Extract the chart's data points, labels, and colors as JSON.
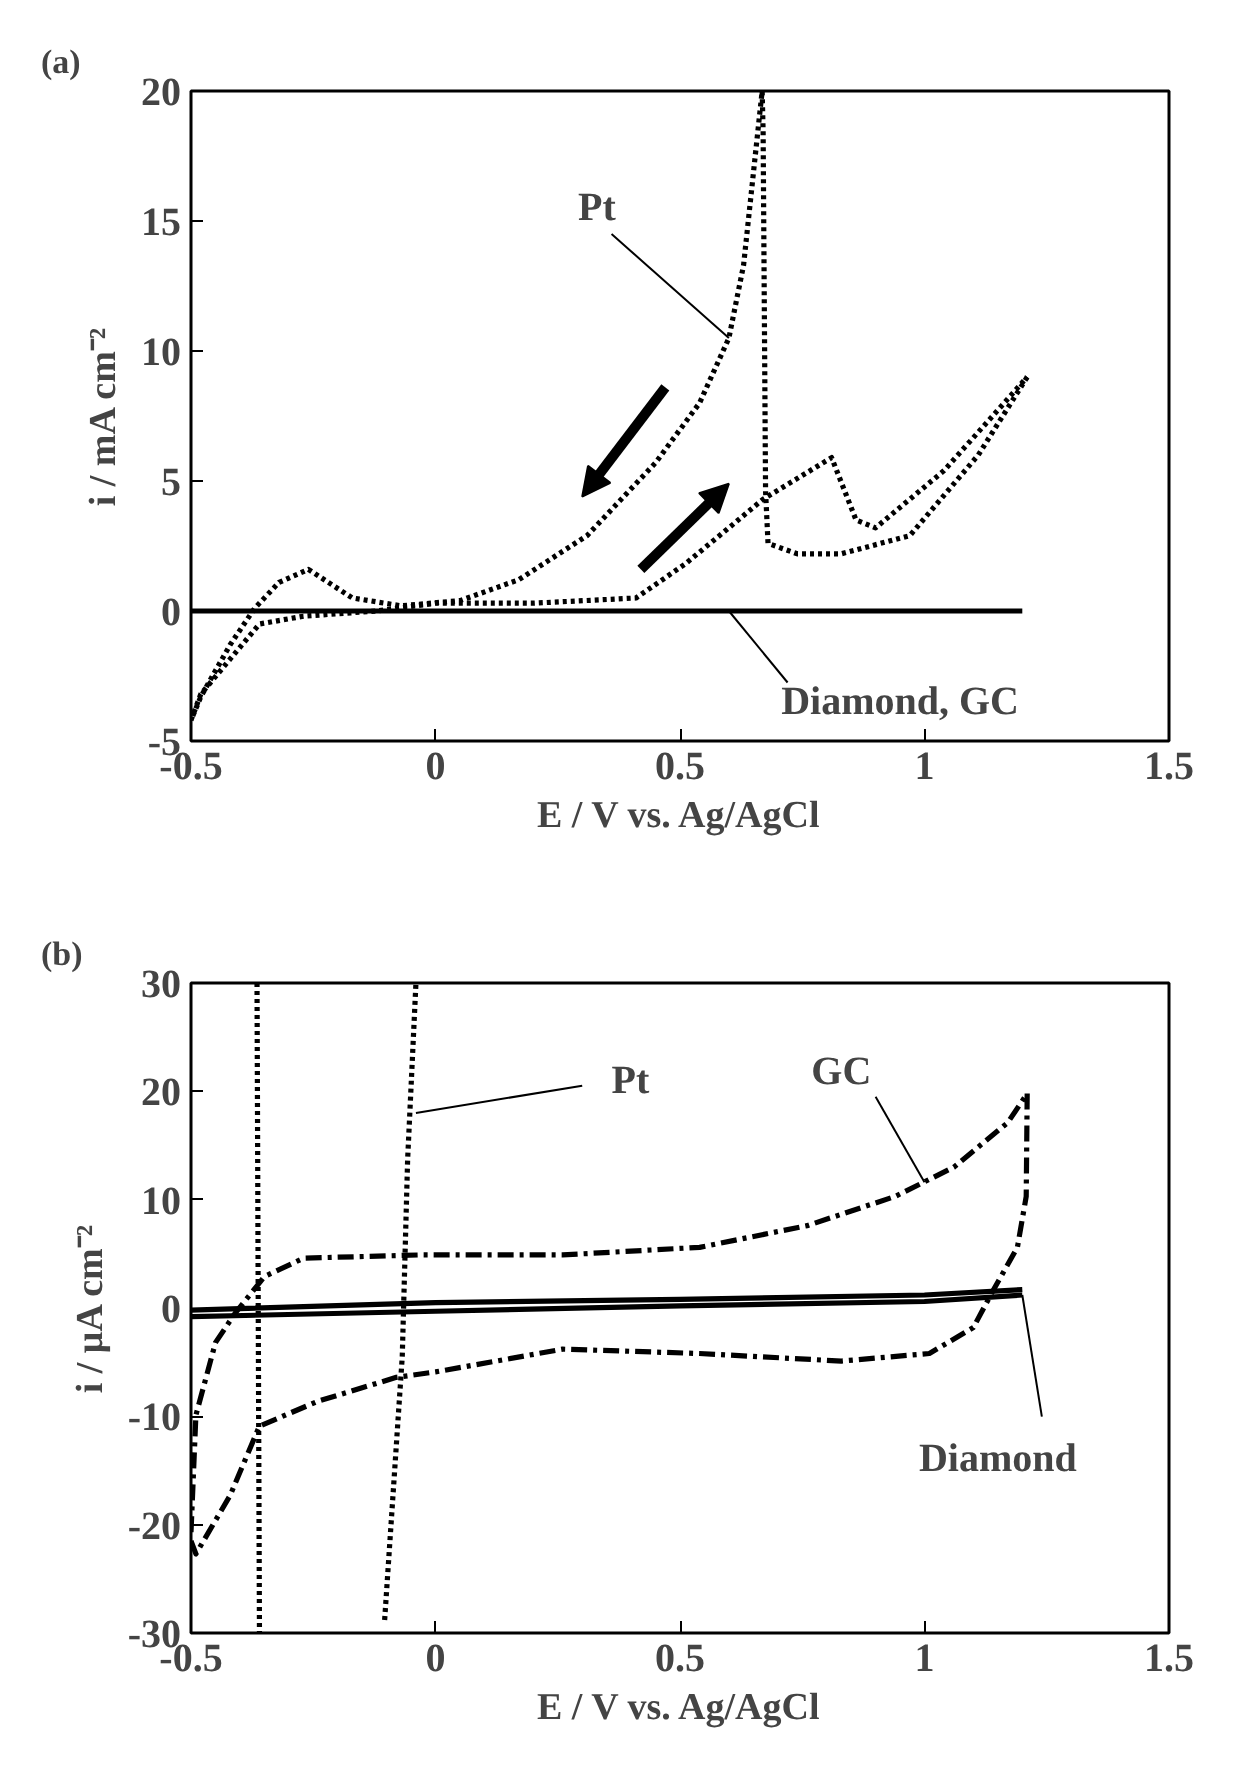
{
  "chart_data": [
    {
      "type": "line",
      "title": "(a)",
      "xlabel": "E / V vs. Ag/AgCl",
      "ylabel": "i / mA cm⁻²",
      "xlim": [
        -0.5,
        1.5
      ],
      "ylim": [
        -5,
        20
      ],
      "xticks": [
        -0.5,
        0,
        0.5,
        1,
        1.5
      ],
      "yticks": [
        -5,
        0,
        5,
        10,
        15,
        20
      ],
      "grid": false,
      "series": [
        {
          "color": "#000000",
          "line_style": "dotted",
          "x": [
            -0.5,
            -0.48,
            -0.36,
            -0.27,
            -0.12,
            0.0,
            0.2,
            0.41,
            0.51,
            0.6,
            0.67,
            0.81,
            0.86,
            0.9,
            1.04,
            1.21
          ],
          "values": [
            -4.2,
            -3.2,
            -0.5,
            -0.2,
            0.0,
            0.3,
            0.3,
            0.5,
            1.8,
            3.2,
            4.3,
            5.9,
            3.5,
            3.2,
            5.4,
            9.0
          ]
        },
        {
          "color": "#000000",
          "line_style": "dotted",
          "x": [
            1.21,
            1.11,
            0.97,
            0.83,
            0.74,
            0.68,
            0.675,
            0.67,
            0.668,
            0.63,
            0.6,
            0.54,
            0.45,
            0.31,
            0.17,
            0.05,
            -0.07,
            -0.17,
            -0.26,
            -0.32,
            -0.37,
            -0.42,
            -0.48,
            -0.5
          ],
          "values": [
            9.0,
            6.0,
            2.9,
            2.2,
            2.2,
            2.6,
            4.6,
            18.4,
            20,
            13.3,
            10.5,
            8.0,
            5.7,
            2.9,
            1.2,
            0.4,
            0.2,
            0.5,
            1.6,
            1.1,
            0.1,
            -1.3,
            -3.3,
            -4.2
          ]
        },
        {
          "color": "#000000",
          "line_style": "solid",
          "x": [
            -0.5,
            1.2
          ],
          "values": [
            0,
            0
          ]
        }
      ],
      "annotations": [
        {
          "text": "Pt",
          "x": 0.6,
          "y": 10.5
        },
        {
          "text": "Diamond, GC",
          "x": 0.6,
          "y": 0
        }
      ]
    },
    {
      "type": "line",
      "title": "(b)",
      "xlabel": "E / V vs. Ag/AgCl",
      "ylabel": "i / μA cm⁻²",
      "xlim": [
        -0.5,
        1.5
      ],
      "ylim": [
        -30,
        30
      ],
      "xticks": [
        -0.5,
        0,
        0.5,
        1,
        1.5
      ],
      "yticks": [
        -30,
        -20,
        -10,
        0,
        10,
        20,
        30
      ],
      "grid": false,
      "series": [
        {
          "color": "#000000",
          "line_style": "dotted",
          "x": [
            -0.365,
            -0.36
          ],
          "values": [
            30,
            -30
          ]
        },
        {
          "color": "#000000",
          "line_style": "dotted",
          "x": [
            -0.104,
            -0.068,
            -0.057,
            -0.04
          ],
          "values": [
            -28.8,
            -4.5,
            13.7,
            30
          ]
        },
        {
          "color": "#000000",
          "line_style": "dashdot",
          "x": [
            -0.5,
            -0.49,
            -0.45,
            -0.41,
            -0.35,
            -0.27,
            -0.03,
            0.26,
            0.54,
            0.76,
            0.94,
            1.06,
            1.17,
            1.21
          ],
          "values": [
            -20.7,
            -9.9,
            -3.2,
            -0.5,
            2.9,
            4.6,
            4.9,
            4.9,
            5.6,
            7.6,
            10.3,
            13.0,
            17.1,
            19.8
          ]
        },
        {
          "color": "#000000",
          "line_style": "dashdot",
          "x": [
            1.21,
            1.208,
            1.19,
            1.14,
            1.1,
            1.01,
            0.83,
            0.54,
            0.26,
            0.0,
            -0.08,
            -0.24,
            -0.36,
            -0.42,
            -0.49,
            -0.5
          ],
          "values": [
            19.8,
            10.3,
            5.6,
            1.6,
            -1.8,
            -4.2,
            -4.9,
            -4.2,
            -3.8,
            -5.9,
            -6.4,
            -8.6,
            -10.9,
            -17.3,
            -22.7,
            -21.5
          ]
        },
        {
          "color": "#000000",
          "line_style": "solid",
          "x": [
            -0.5,
            0,
            0.5,
            1.0,
            1.2
          ],
          "values": [
            -0.2,
            0.5,
            0.8,
            1.2,
            1.7
          ]
        },
        {
          "color": "#000000",
          "line_style": "solid",
          "x": [
            1.2,
            1.0,
            0.5,
            0,
            -0.5
          ],
          "values": [
            1.2,
            0.6,
            0.2,
            -0.3,
            -0.8
          ]
        }
      ],
      "annotations": [
        {
          "text": "Pt",
          "x": -0.04,
          "y": 18
        },
        {
          "text": "GC",
          "x": 1.0,
          "y": 11.6
        },
        {
          "text": "Diamond",
          "x": 1.2,
          "y": 1.2
        }
      ]
    }
  ]
}
